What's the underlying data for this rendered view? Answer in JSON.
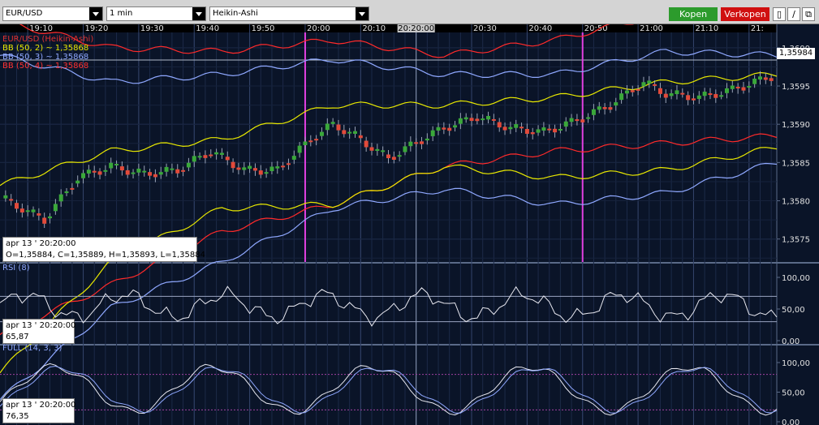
{
  "toolbar": {
    "symbol": "EUR/USD",
    "interval": "1 min",
    "chart_type": "Heikin-Ashi",
    "buy_label": "Kopen",
    "sell_label": "Verkopen",
    "buy_color": "#2c9b2c",
    "sell_color": "#d01010",
    "tools": [
      "chart-type-icon",
      "pencil-icon",
      "expand-icon"
    ]
  },
  "time_axis": {
    "labels": [
      "19:10",
      "19:20",
      "19:30",
      "19:40",
      "19:50",
      "20:00",
      "20:10",
      "20:20:00",
      "20:30",
      "20:40",
      "20:50",
      "21:00",
      "21:10",
      "21:"
    ],
    "highlighted": "20:20:00"
  },
  "price_panel": {
    "legend": [
      {
        "text": "EUR/USD (Heikin-Ashi)",
        "color": "#e03030"
      },
      {
        "text": "BB (50, 2) ~ 1,35868",
        "color": "#e8e800"
      },
      {
        "text": "BB (50, 3) ~ 1,35868",
        "color": "#8fa8ff"
      },
      {
        "text": "BB (50, 4) ~ 1,35868",
        "color": "#ff3030"
      }
    ],
    "y_ticks": [
      "1,3600",
      "1,3595",
      "1,3590",
      "1,3585",
      "1,3580",
      "1,3575"
    ],
    "current_price": "1,35984",
    "info_time": "apr 13 ' 20:20:00",
    "info_ohlc": "O=1,35884, C=1,35889, H=1,35893, L=1,35884"
  },
  "rsi_panel": {
    "legend": "RSI (8)",
    "y_ticks": [
      "100,00",
      "50,00",
      "0,00"
    ],
    "info_time": "apr 13 ' 20:20:00",
    "info_value": "65,87"
  },
  "stoch_panel": {
    "legend": "FULL (14, 3, 3)",
    "y_ticks": [
      "100,00",
      "50,00",
      "0,00"
    ],
    "info_time": "apr 13 ' 20:20:00",
    "info_value": "76,35"
  },
  "chart_data": {
    "type": "candlestick",
    "symbol": "EUR/USD",
    "style": "Heikin-Ashi",
    "interval": "1 min",
    "x_range": [
      "19:05",
      "21:13"
    ],
    "price_ylim": [
      1.3572,
      1.3602
    ],
    "close_path_minutes": [
      0,
      8,
      14,
      20,
      26,
      32,
      38,
      44,
      50,
      56,
      60,
      64,
      70,
      76,
      80,
      86,
      92,
      98,
      104,
      110,
      116,
      120,
      126,
      132,
      138,
      140
    ],
    "close_path_values": [
      1.35805,
      1.35775,
      1.3583,
      1.35845,
      1.35835,
      1.3584,
      1.35865,
      1.3584,
      1.3584,
      1.3588,
      1.359,
      1.35885,
      1.35855,
      1.3588,
      1.35895,
      1.3591,
      1.35895,
      1.3589,
      1.35905,
      1.35925,
      1.35955,
      1.3594,
      1.35935,
      1.35945,
      1.3596,
      1.35965
    ],
    "bands": {
      "bb_50_2_upper": [
        1.3582,
        1.35865,
        1.3588,
        1.35925,
        1.35925,
        1.35935,
        1.35955,
        1.35965
      ],
      "bb_50_2_lower": [
        1.35625,
        1.3569,
        1.3576,
        1.35795,
        1.35845,
        1.35865,
        1.35875,
        1.35885
      ],
      "bb_50_3_upper": [
        1.3599,
        1.35955,
        1.35965,
        1.35985,
        1.35965,
        1.35965,
        1.35995,
        1.3599
      ],
      "bb_50_3_lower": [
        1.35575,
        1.3572,
        1.3579,
        1.35795,
        1.35845,
        1.3583,
        1.3584,
        1.3587
      ],
      "bb_50_4_upper": [
        1.36035,
        1.36,
        1.35995,
        1.3601,
        1.3599,
        1.3601,
        1.36045,
        1.3604
      ],
      "bb_50_4_lower": [
        1.3554,
        1.3566,
        1.3572,
        1.3579,
        1.35815,
        1.35795,
        1.3581,
        1.3585
      ]
    },
    "band_minutes": [
      0,
      20,
      40,
      60,
      80,
      100,
      120,
      140
    ],
    "vertical_markers": [
      "20:00",
      "20:50"
    ],
    "rsi": {
      "name": "RSI (8)",
      "ylim": [
        0,
        100
      ],
      "levels": [
        70,
        30
      ],
      "last": 65.87
    },
    "stochastic": {
      "name": "FULL (14, 3, 3)",
      "ylim": [
        0,
        100
      ],
      "levels": [
        80,
        20
      ],
      "last": 76.35
    }
  }
}
